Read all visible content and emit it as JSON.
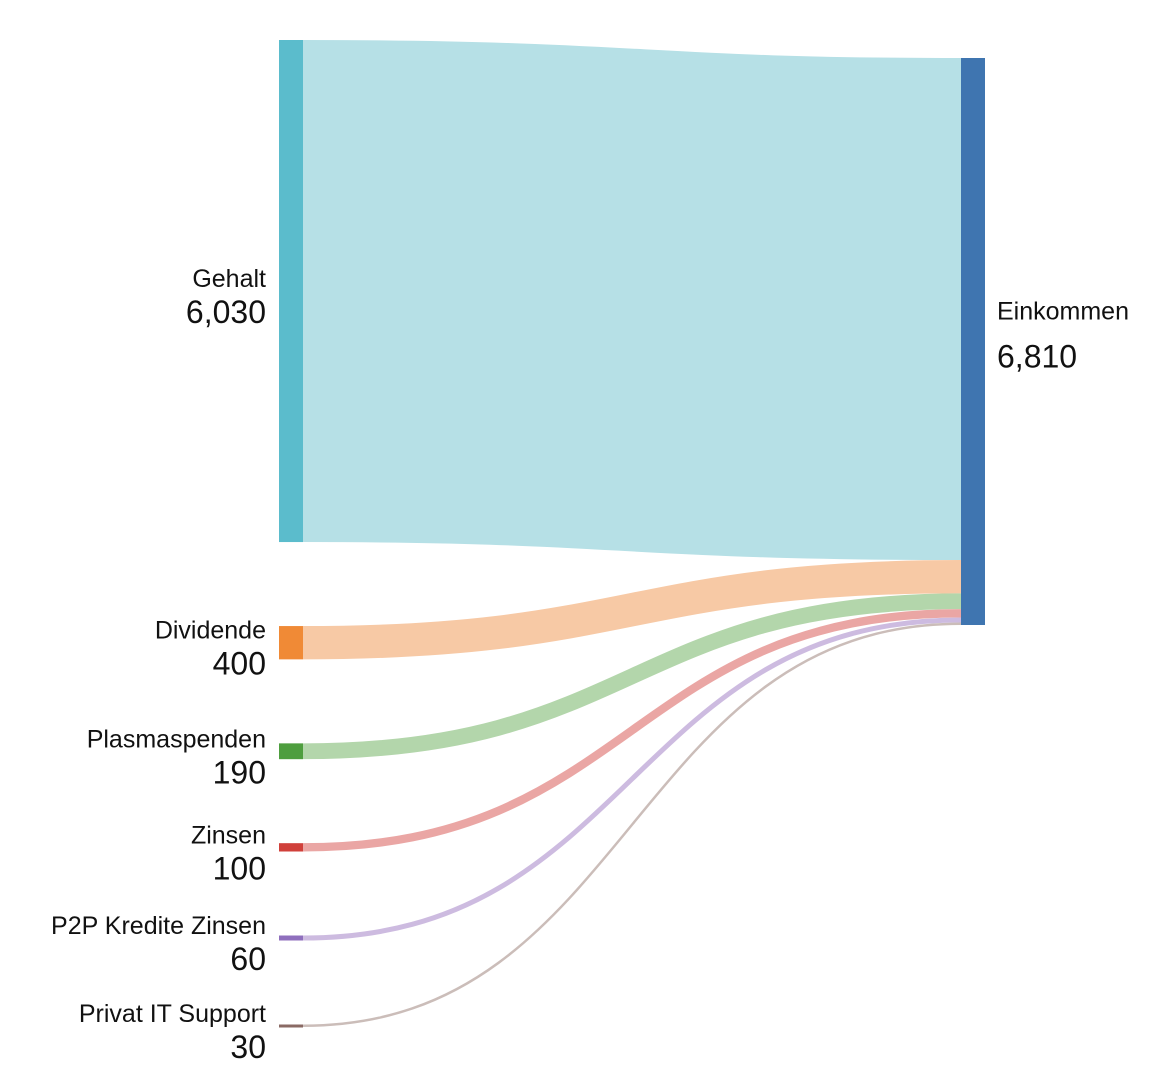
{
  "chart_data": {
    "type": "sankey",
    "nodes": [
      {
        "id": "gehalt",
        "name": "Gehalt",
        "value": 6030,
        "value_label": "6,030",
        "color": "#5bbccc",
        "link_color": "#b6e0e6"
      },
      {
        "id": "dividende",
        "name": "Dividende",
        "value": 400,
        "value_label": "400",
        "color": "#f08a36",
        "link_color": "#f7c9a5"
      },
      {
        "id": "plasmaspenden",
        "name": "Plasmaspenden",
        "value": 190,
        "value_label": "190",
        "color": "#4e9e3f",
        "link_color": "#b3d6ab"
      },
      {
        "id": "zinsen",
        "name": "Zinsen",
        "value": 100,
        "value_label": "100",
        "color": "#d0403a",
        "link_color": "#eaa6a4"
      },
      {
        "id": "p2p",
        "name": "P2P Kredite Zinsen",
        "value": 60,
        "value_label": "60",
        "color": "#8f6fbd",
        "link_color": "#cdbbe0"
      },
      {
        "id": "privat_it",
        "name": "Privat IT Support",
        "value": 30,
        "value_label": "30",
        "color": "#8a6a64",
        "link_color": "#cbbdb9"
      },
      {
        "id": "einkommen",
        "name": "Einkommen",
        "value": 6810,
        "value_label": "6,810",
        "color": "#3f75b0"
      }
    ],
    "links": [
      {
        "source": "gehalt",
        "target": "einkommen",
        "value": 6030
      },
      {
        "source": "dividende",
        "target": "einkommen",
        "value": 400
      },
      {
        "source": "plasmaspenden",
        "target": "einkommen",
        "value": 190
      },
      {
        "source": "zinsen",
        "target": "einkommen",
        "value": 100
      },
      {
        "source": "p2p",
        "target": "einkommen",
        "value": 60
      },
      {
        "source": "privat_it",
        "target": "einkommen",
        "value": 30
      }
    ]
  }
}
